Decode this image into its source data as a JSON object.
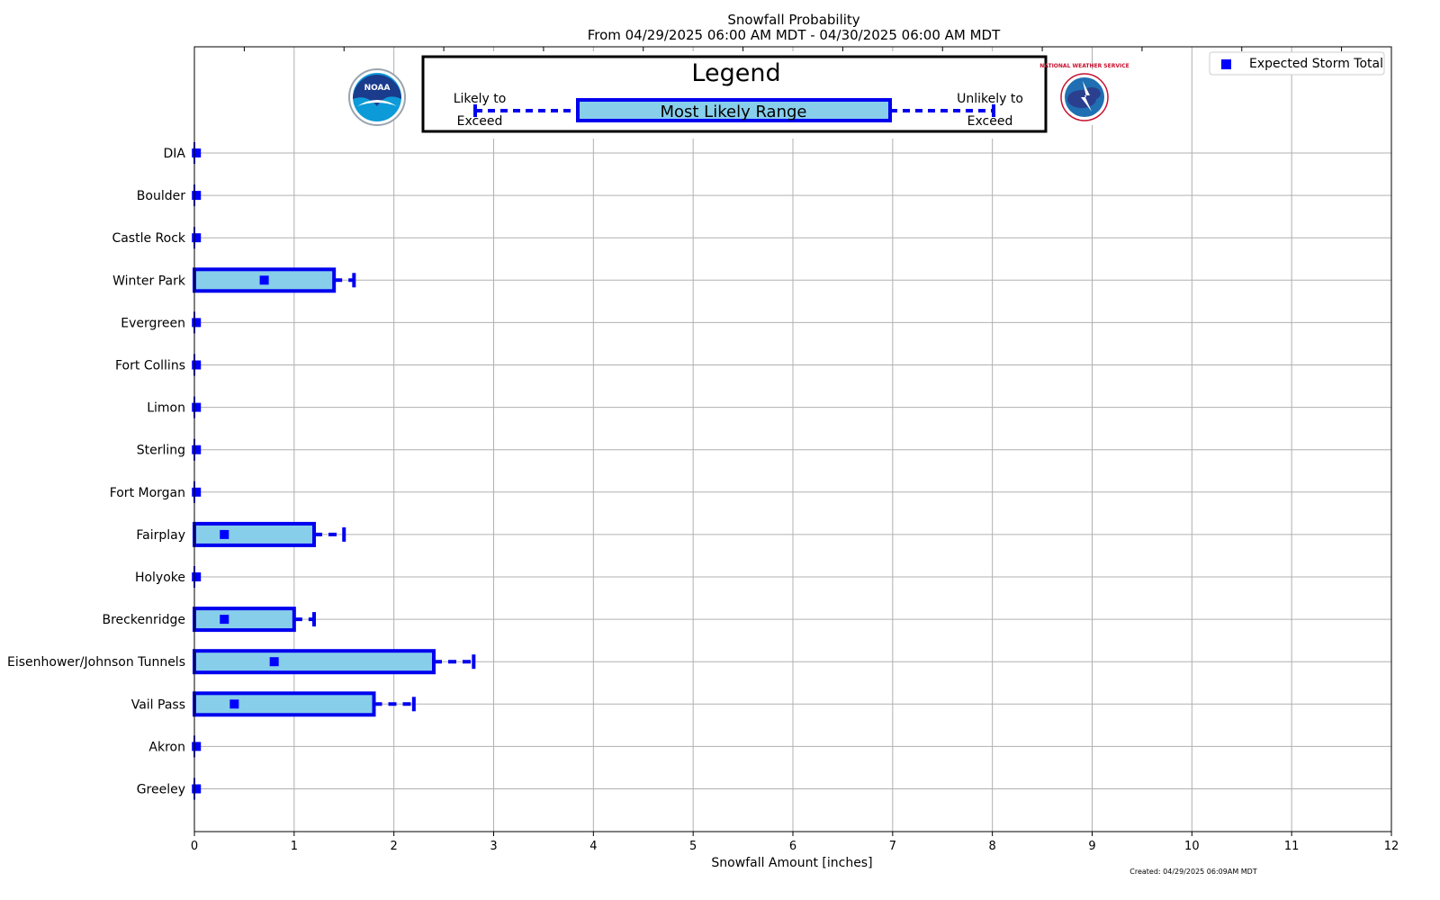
{
  "chart_data": {
    "type": "bar",
    "title": "Snowfall Probability",
    "subtitle": "From 04/29/2025 06:00 AM MDT - 04/30/2025 06:00 AM MDT",
    "xlabel": "Snowfall Amount [inches]",
    "xlim": [
      0,
      12
    ],
    "xticks": [
      "0",
      "1",
      "2",
      "3",
      "4",
      "5",
      "6",
      "7",
      "8",
      "9",
      "10",
      "11",
      "12"
    ],
    "grid": true,
    "orientation": "horizontal",
    "legend_entries": [
      "Expected Storm Total"
    ],
    "legend_placement": "top-right",
    "created": "Created: 04/29/2025 06:09AM MDT",
    "categories": [
      "DIA",
      "Boulder",
      "Castle Rock",
      "Winter Park",
      "Evergreen",
      "Fort Collins",
      "Limon",
      "Sterling",
      "Fort Morgan",
      "Fairplay",
      "Holyoke",
      "Breckenridge",
      "Eisenhower/Johnson Tunnels",
      "Vail Pass",
      "Akron",
      "Greeley"
    ],
    "series": [
      {
        "name": "Most Likely Range",
        "values": [
          0,
          0,
          0,
          1.4,
          0,
          0,
          0,
          0,
          0,
          1.2,
          0,
          1.0,
          2.4,
          1.8,
          0,
          0
        ]
      },
      {
        "name": "Unlikely to Exceed",
        "values": [
          0,
          0,
          0,
          1.6,
          0,
          0,
          0,
          0,
          0,
          1.5,
          0,
          1.2,
          2.8,
          2.2,
          0,
          0
        ]
      },
      {
        "name": "Expected Storm Total",
        "values": [
          0.02,
          0.02,
          0.02,
          0.7,
          0.02,
          0.02,
          0.02,
          0.02,
          0.02,
          0.3,
          0.02,
          0.3,
          0.8,
          0.4,
          0.02,
          0.02
        ]
      }
    ],
    "colors": {
      "range_fill": "#87ceeb",
      "range_edge": "#0000ee",
      "marker": "#0000ff",
      "grid": "#b0b0b0"
    }
  },
  "legend_box": {
    "title": "Legend",
    "likely_line1": "Likely to",
    "likely_line2": "Exceed",
    "range_label": "Most Likely Range",
    "unlikely_line1": "Unlikely to",
    "unlikely_line2": "Exceed"
  },
  "logos": {
    "noaa_text": "NOAA",
    "nws_text": "NATIONAL WEATHER SERVICE"
  }
}
